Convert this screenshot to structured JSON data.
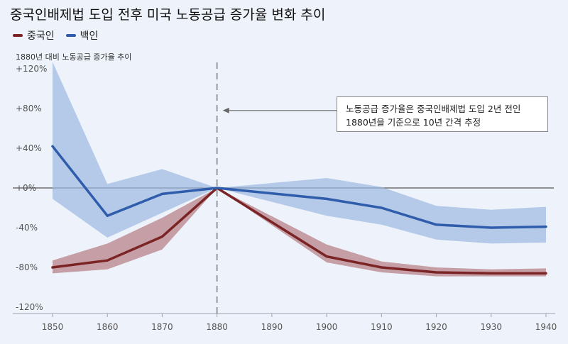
{
  "chart_data": {
    "type": "line",
    "title": "중국인배제법 도입 전후 미국 노동공급 증가율 변화 추이",
    "subtitle": "1880년 대비 노동공급 증가율 추이",
    "x": [
      1850,
      1860,
      1870,
      1880,
      1890,
      1900,
      1910,
      1920,
      1930,
      1940
    ],
    "x_ticks": [
      "1850",
      "1860",
      "1870",
      "1880",
      "1890",
      "1900",
      "1910",
      "1920",
      "1930",
      "1940"
    ],
    "y_ticks": [
      "+120%",
      "+80%",
      "+40%",
      "+0%",
      "-40%",
      "-80%",
      "-120%"
    ],
    "ylim": [
      -120,
      120
    ],
    "grid": false,
    "legend_position": "top-left",
    "reference_line_x": 1880,
    "series": [
      {
        "name": "중국인",
        "color": "#7b2426",
        "band_color": "#b57a82",
        "x": [
          1850,
          1860,
          1870,
          1880,
          1900,
          1910,
          1920,
          1930,
          1940
        ],
        "values": [
          -80,
          -73,
          -49,
          0,
          -69,
          -80,
          -85,
          -86,
          -86
        ],
        "lower": [
          -86,
          -82,
          -62,
          0,
          -75,
          -85,
          -89,
          -89,
          -89
        ],
        "upper": [
          -73,
          -56,
          -30,
          0,
          -57,
          -74,
          -80,
          -82,
          -81
        ]
      },
      {
        "name": "백인",
        "color": "#2f5cab",
        "band_color": "#9bb8e0",
        "x": [
          1850,
          1860,
          1870,
          1880,
          1900,
          1910,
          1920,
          1930,
          1940
        ],
        "values": [
          42,
          -28,
          -6,
          0,
          -11,
          -20,
          -37,
          -40,
          -39
        ],
        "lower": [
          -11,
          -50,
          -25,
          0,
          -28,
          -37,
          -52,
          -56,
          -55
        ],
        "upper": [
          127,
          4,
          19,
          0,
          10,
          1,
          -18,
          -22,
          -19
        ]
      }
    ],
    "annotation": {
      "line1": "노동공급 증가율은 중국인배제법 도입 2년 전인",
      "line2": "1880년을 기준으로 10년 간격 추정",
      "target_x": 1880,
      "target_y": 78
    }
  }
}
